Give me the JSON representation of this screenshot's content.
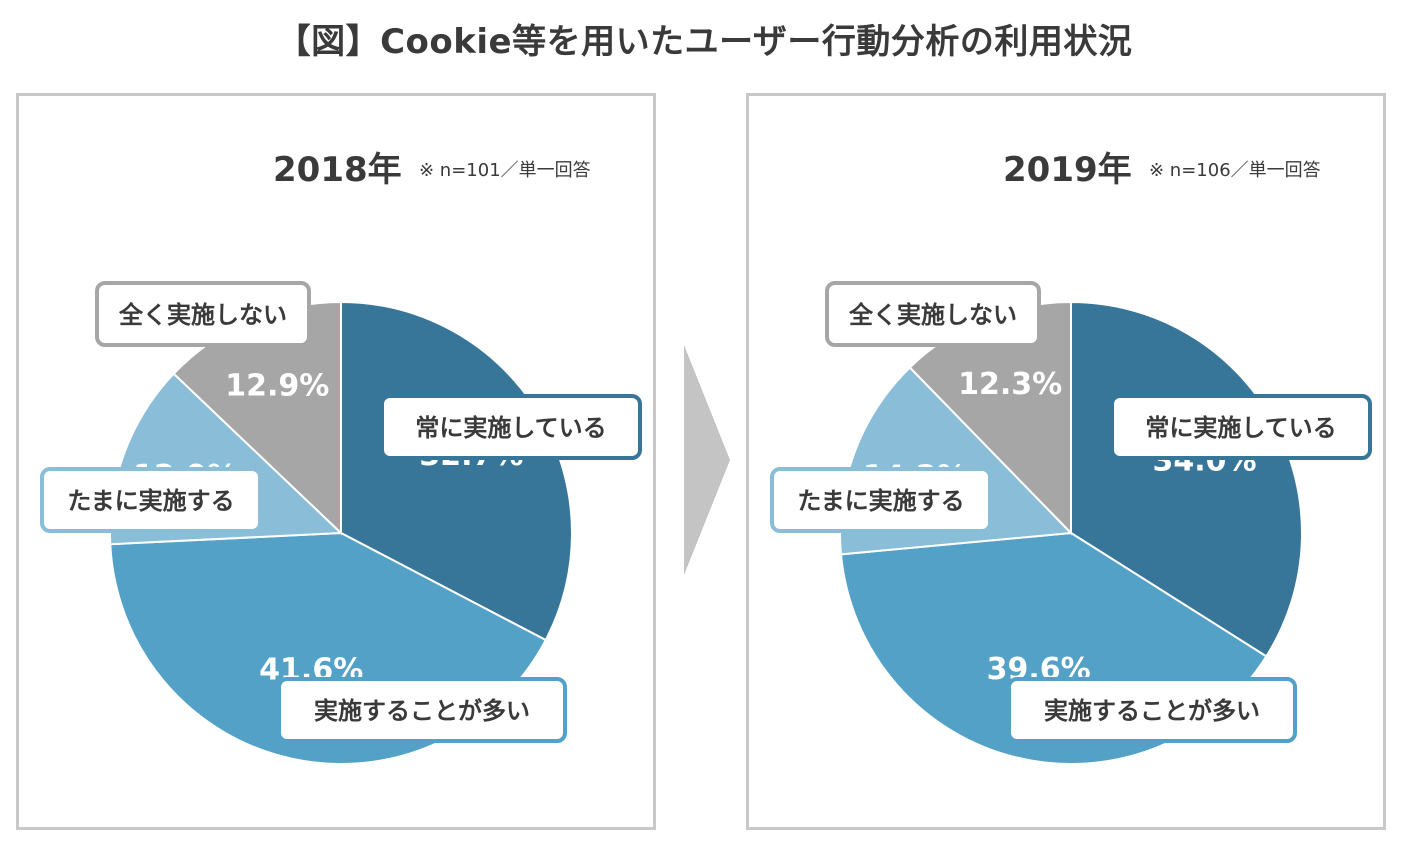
{
  "title": "【図】Cookie等を用いたユーザー行動分析の利用状況",
  "colors": {
    "always": "#377699",
    "often": "#53a1c7",
    "sometimes": "#8abdd8",
    "never": "#a6a6a6",
    "panel_border": "#c8c8c8",
    "arrow": "#c4c4c4"
  },
  "chart_data": [
    {
      "type": "pie",
      "year_label": "2018年",
      "note": "※ n=101／単一回答",
      "categories": [
        "常に実施している",
        "実施することが多い",
        "たまに実施する",
        "全く実施しない"
      ],
      "values": [
        32.7,
        41.6,
        12.9,
        12.9
      ],
      "value_labels": [
        "32.7%",
        "41.6%",
        "12.9%",
        "12.9%"
      ]
    },
    {
      "type": "pie",
      "year_label": "2019年",
      "note": "※ n=106／単一回答",
      "categories": [
        "常に実施している",
        "実施することが多い",
        "たまに実施する",
        "全く実施しない"
      ],
      "values": [
        34.0,
        39.6,
        14.2,
        12.3
      ],
      "value_labels": [
        "34.0%",
        "39.6%",
        "14.2%",
        "12.3%"
      ]
    }
  ]
}
